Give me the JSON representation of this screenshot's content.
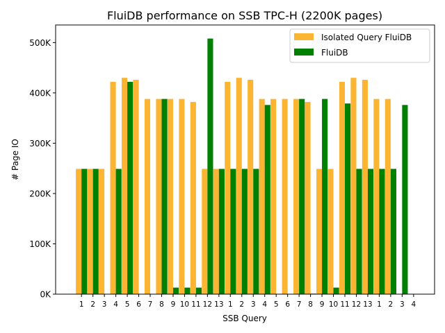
{
  "chart_data": {
    "type": "bar",
    "title": "FluiDB performance on SSB TPC-H (2200K  pages)",
    "xlabel": "SSB Query",
    "ylabel": "# Page IO",
    "ylim": [
      0,
      535000
    ],
    "yticks": [
      0,
      100000,
      200000,
      300000,
      400000,
      500000
    ],
    "ytick_labels": [
      "0K",
      "100K",
      "200K",
      "300K",
      "400K",
      "500K"
    ],
    "categories": [
      "1",
      "2",
      "3",
      "4",
      "5",
      "6",
      "7",
      "8",
      "9",
      "10",
      "11",
      "12",
      "13",
      "1",
      "2",
      "3",
      "4",
      "5",
      "6",
      "7",
      "8",
      "9",
      "10",
      "11",
      "12",
      "13",
      "1",
      "2",
      "3",
      "4"
    ],
    "legend_position": "top-right",
    "grid": false,
    "series": [
      {
        "name": "Isolated Query FluiDB",
        "color": "#fbb533",
        "values": [
          249000,
          249000,
          249000,
          422000,
          430000,
          426000,
          388000,
          388000,
          388000,
          388000,
          382000,
          249000,
          249000,
          422000,
          430000,
          426000,
          388000,
          388000,
          388000,
          388000,
          382000,
          249000,
          249000,
          422000,
          430000,
          426000,
          388000,
          388000,
          0,
          0
        ]
      },
      {
        "name": "FluiDB",
        "color": "#008000",
        "values": [
          249000,
          249000,
          0,
          249000,
          422000,
          0,
          0,
          388000,
          13000,
          13000,
          13000,
          508000,
          249000,
          249000,
          249000,
          249000,
          376000,
          0,
          0,
          388000,
          1000,
          388000,
          13000,
          379000,
          249000,
          249000,
          249000,
          249000,
          376000,
          0
        ]
      }
    ]
  }
}
